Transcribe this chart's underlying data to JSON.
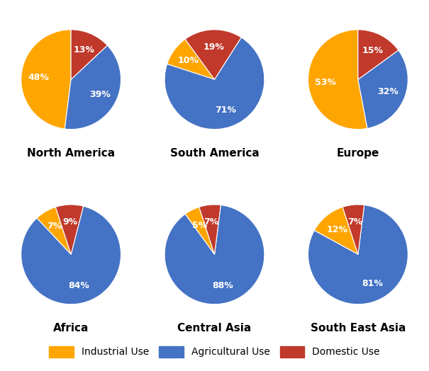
{
  "regions": [
    "North America",
    "South America",
    "Europe",
    "Africa",
    "Central Asia",
    "South East Asia"
  ],
  "categories": [
    "Industrial Use",
    "Agricultural Use",
    "Domestic Use"
  ],
  "colors": [
    "#FFA500",
    "#4472C4",
    "#C0392B"
  ],
  "configs": {
    "North America": {
      "values": [
        48,
        39,
        13
      ],
      "startangle": 90
    },
    "South America": {
      "values": [
        10,
        71,
        19
      ],
      "startangle": 126
    },
    "Europe": {
      "values": [
        53,
        32,
        15
      ],
      "startangle": 90
    },
    "Africa": {
      "values": [
        7,
        84,
        9
      ],
      "startangle": 108
    },
    "Central Asia": {
      "values": [
        5,
        88,
        7
      ],
      "startangle": 108
    },
    "South East Asia": {
      "values": [
        12,
        81,
        7
      ],
      "startangle": 108
    }
  },
  "label_fontsize": 9,
  "title_fontsize": 11,
  "legend_fontsize": 10,
  "background_color": "#FFFFFF",
  "figsize": [
    6.05,
    5.24
  ],
  "dpi": 100
}
